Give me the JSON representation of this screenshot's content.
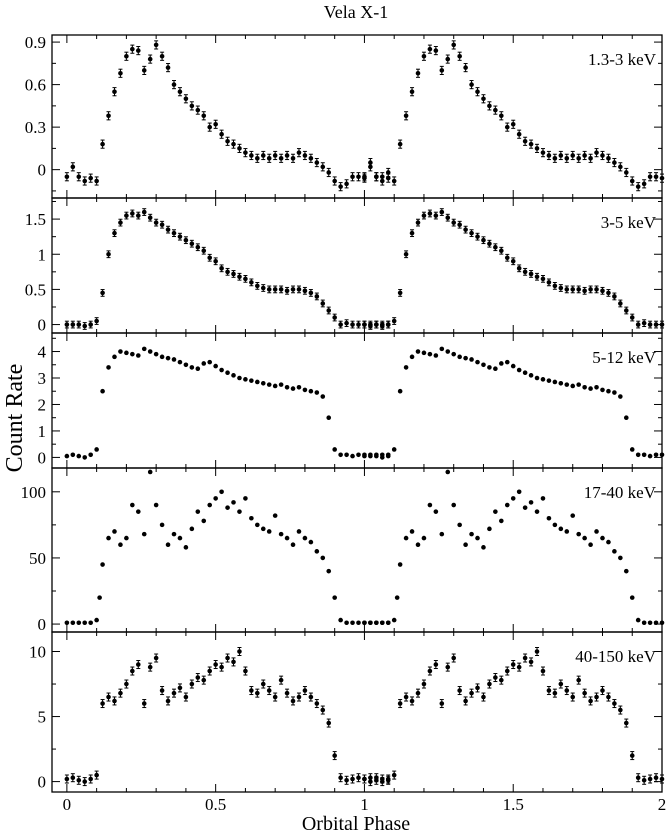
{
  "title": "Vela X-1",
  "xlabel": "Orbital Phase",
  "ylabel": "Count Rate",
  "x_ticks": [
    "0",
    "0.5",
    "1",
    "1.5",
    "2"
  ],
  "xlim": [
    -0.05,
    2.0
  ],
  "chart_data": [
    {
      "type": "scatter",
      "label": "1.3-3 keV",
      "ylim": [
        -0.2,
        0.95
      ],
      "yticks": [
        0,
        0.3,
        0.6,
        0.9
      ],
      "ytick_labels": [
        "0",
        "0.3",
        "0.6",
        "0.9"
      ],
      "errorbars": true,
      "phase": [
        0.0,
        0.02,
        0.04,
        0.06,
        0.08,
        0.1,
        0.12,
        0.14,
        0.16,
        0.18,
        0.2,
        0.22,
        0.24,
        0.26,
        0.28,
        0.3,
        0.32,
        0.34,
        0.36,
        0.38,
        0.4,
        0.42,
        0.44,
        0.46,
        0.48,
        0.5,
        0.52,
        0.54,
        0.56,
        0.58,
        0.6,
        0.62,
        0.64,
        0.66,
        0.68,
        0.7,
        0.72,
        0.74,
        0.76,
        0.78,
        0.8,
        0.82,
        0.84,
        0.86,
        0.88,
        0.9,
        0.92,
        0.94,
        0.96,
        0.98,
        1.0,
        1.02,
        1.04,
        1.06,
        1.08
      ],
      "values": [
        -0.05,
        0.02,
        -0.05,
        -0.08,
        -0.06,
        -0.08,
        0.18,
        0.38,
        0.55,
        0.68,
        0.8,
        0.85,
        0.84,
        0.7,
        0.78,
        0.88,
        0.8,
        0.72,
        0.6,
        0.55,
        0.5,
        0.45,
        0.42,
        0.38,
        0.3,
        0.32,
        0.25,
        0.2,
        0.18,
        0.15,
        0.12,
        0.1,
        0.08,
        0.1,
        0.08,
        0.1,
        0.08,
        0.1,
        0.08,
        0.12,
        0.1,
        0.08,
        0.05,
        0.02,
        -0.02,
        -0.08,
        -0.12,
        -0.1,
        -0.05,
        -0.05,
        -0.06,
        0.05,
        -0.05,
        -0.05,
        -0.02
      ]
    },
    {
      "type": "scatter",
      "label": "3-5 keV",
      "ylim": [
        -0.12,
        1.8
      ],
      "yticks": [
        0,
        0.5,
        1,
        1.5
      ],
      "ytick_labels": [
        "0",
        "0.5",
        "1",
        "1.5"
      ],
      "errorbars": true,
      "phase": [
        0.0,
        0.02,
        0.04,
        0.06,
        0.08,
        0.1,
        0.12,
        0.14,
        0.16,
        0.18,
        0.2,
        0.22,
        0.24,
        0.26,
        0.28,
        0.3,
        0.32,
        0.34,
        0.36,
        0.38,
        0.4,
        0.42,
        0.44,
        0.46,
        0.48,
        0.5,
        0.52,
        0.54,
        0.56,
        0.58,
        0.6,
        0.62,
        0.64,
        0.66,
        0.68,
        0.7,
        0.72,
        0.74,
        0.76,
        0.78,
        0.8,
        0.82,
        0.84,
        0.86,
        0.88,
        0.9,
        0.92,
        0.94,
        0.96,
        0.98,
        1.0,
        1.02,
        1.04,
        1.06,
        1.08
      ],
      "values": [
        0.0,
        0.0,
        0.0,
        -0.02,
        0.0,
        0.05,
        0.45,
        1.0,
        1.3,
        1.45,
        1.55,
        1.58,
        1.55,
        1.6,
        1.52,
        1.45,
        1.42,
        1.35,
        1.3,
        1.25,
        1.2,
        1.15,
        1.1,
        1.05,
        0.95,
        0.9,
        0.8,
        0.75,
        0.72,
        0.68,
        0.65,
        0.6,
        0.55,
        0.52,
        0.5,
        0.5,
        0.5,
        0.48,
        0.5,
        0.5,
        0.48,
        0.45,
        0.4,
        0.3,
        0.2,
        0.1,
        0.0,
        0.02,
        0.0,
        0.0,
        0.0,
        -0.02,
        0.0,
        0.0,
        0.0
      ]
    },
    {
      "type": "scatter",
      "label": "5-12 keV",
      "ylim": [
        -0.4,
        4.7
      ],
      "yticks": [
        0,
        1,
        2,
        3,
        4
      ],
      "ytick_labels": [
        "0",
        "1",
        "2",
        "3",
        "4"
      ],
      "errorbars": false,
      "phase": [
        0.0,
        0.02,
        0.04,
        0.06,
        0.08,
        0.1,
        0.12,
        0.14,
        0.16,
        0.18,
        0.2,
        0.22,
        0.24,
        0.26,
        0.28,
        0.3,
        0.32,
        0.34,
        0.36,
        0.38,
        0.4,
        0.42,
        0.44,
        0.46,
        0.48,
        0.5,
        0.52,
        0.54,
        0.56,
        0.58,
        0.6,
        0.62,
        0.64,
        0.66,
        0.68,
        0.7,
        0.72,
        0.74,
        0.76,
        0.78,
        0.8,
        0.82,
        0.84,
        0.86,
        0.88,
        0.9,
        0.92,
        0.94,
        0.96,
        0.98,
        1.0,
        1.02,
        1.04,
        1.06,
        1.08
      ],
      "values": [
        0.05,
        0.1,
        0.05,
        0.0,
        0.1,
        0.3,
        2.5,
        3.4,
        3.8,
        4.0,
        3.95,
        3.9,
        3.85,
        4.1,
        4.0,
        3.9,
        3.8,
        3.75,
        3.7,
        3.6,
        3.5,
        3.4,
        3.35,
        3.55,
        3.6,
        3.45,
        3.3,
        3.2,
        3.1,
        3.0,
        2.95,
        2.9,
        2.85,
        2.8,
        2.75,
        2.7,
        2.75,
        2.65,
        2.6,
        2.65,
        2.55,
        2.5,
        2.45,
        2.3,
        1.5,
        0.3,
        0.1,
        0.1,
        0.05,
        0.1,
        0.1,
        0.05,
        0.1,
        0.1,
        0.05
      ]
    },
    {
      "type": "scatter",
      "label": "17-40 keV",
      "ylim": [
        -6,
        118
      ],
      "yticks": [
        0,
        50,
        100
      ],
      "ytick_labels": [
        "0",
        "50",
        "100"
      ],
      "errorbars": false,
      "phase": [
        0.0,
        0.02,
        0.04,
        0.06,
        0.08,
        0.1,
        0.11,
        0.12,
        0.14,
        0.16,
        0.18,
        0.2,
        0.22,
        0.24,
        0.26,
        0.28,
        0.3,
        0.32,
        0.34,
        0.36,
        0.38,
        0.4,
        0.42,
        0.44,
        0.46,
        0.48,
        0.5,
        0.52,
        0.54,
        0.56,
        0.58,
        0.6,
        0.62,
        0.64,
        0.66,
        0.68,
        0.7,
        0.72,
        0.74,
        0.76,
        0.78,
        0.8,
        0.82,
        0.84,
        0.86,
        0.88,
        0.9,
        0.92,
        0.94,
        0.96,
        0.98,
        1.0,
        1.02,
        1.04,
        1.06,
        1.08
      ],
      "values": [
        1,
        1,
        1,
        1,
        1,
        3,
        20,
        45,
        65,
        70,
        60,
        65,
        90,
        85,
        68,
        115,
        90,
        75,
        60,
        68,
        65,
        58,
        72,
        85,
        78,
        90,
        95,
        100,
        88,
        92,
        85,
        95,
        80,
        75,
        72,
        70,
        82,
        68,
        65,
        60,
        70,
        65,
        62,
        55,
        50,
        40,
        20,
        3,
        1,
        1,
        1,
        1,
        1,
        1,
        1,
        1
      ]
    },
    {
      "type": "scatter",
      "label": "40-150 keV",
      "ylim": [
        -0.8,
        11.5
      ],
      "yticks": [
        0,
        5,
        10
      ],
      "ytick_labels": [
        "0",
        "5",
        "10"
      ],
      "errorbars": true,
      "phase": [
        0.0,
        0.02,
        0.04,
        0.06,
        0.08,
        0.1,
        0.12,
        0.14,
        0.16,
        0.18,
        0.2,
        0.22,
        0.24,
        0.26,
        0.28,
        0.3,
        0.32,
        0.34,
        0.36,
        0.38,
        0.4,
        0.42,
        0.44,
        0.46,
        0.48,
        0.5,
        0.52,
        0.54,
        0.56,
        0.58,
        0.6,
        0.62,
        0.64,
        0.66,
        0.68,
        0.7,
        0.72,
        0.74,
        0.76,
        0.78,
        0.8,
        0.82,
        0.84,
        0.86,
        0.88,
        0.9,
        0.92,
        0.94,
        0.96,
        0.98,
        1.0,
        1.02,
        1.04,
        1.06,
        1.08
      ],
      "values": [
        0.2,
        0.3,
        0.1,
        0.0,
        0.2,
        0.5,
        6.0,
        6.5,
        6.2,
        6.8,
        7.5,
        8.5,
        9.0,
        6.0,
        8.8,
        9.5,
        7.0,
        6.2,
        6.8,
        7.2,
        6.5,
        7.5,
        8.0,
        7.8,
        8.5,
        9.0,
        8.8,
        9.5,
        9.2,
        10.0,
        8.5,
        7.0,
        6.8,
        7.5,
        7.0,
        6.5,
        7.8,
        6.8,
        6.2,
        6.5,
        7.0,
        6.5,
        6.0,
        5.5,
        4.5,
        2.0,
        0.3,
        0.1,
        0.2,
        0.3,
        0.2,
        0.0,
        0.3,
        0.2,
        0.1
      ]
    }
  ]
}
